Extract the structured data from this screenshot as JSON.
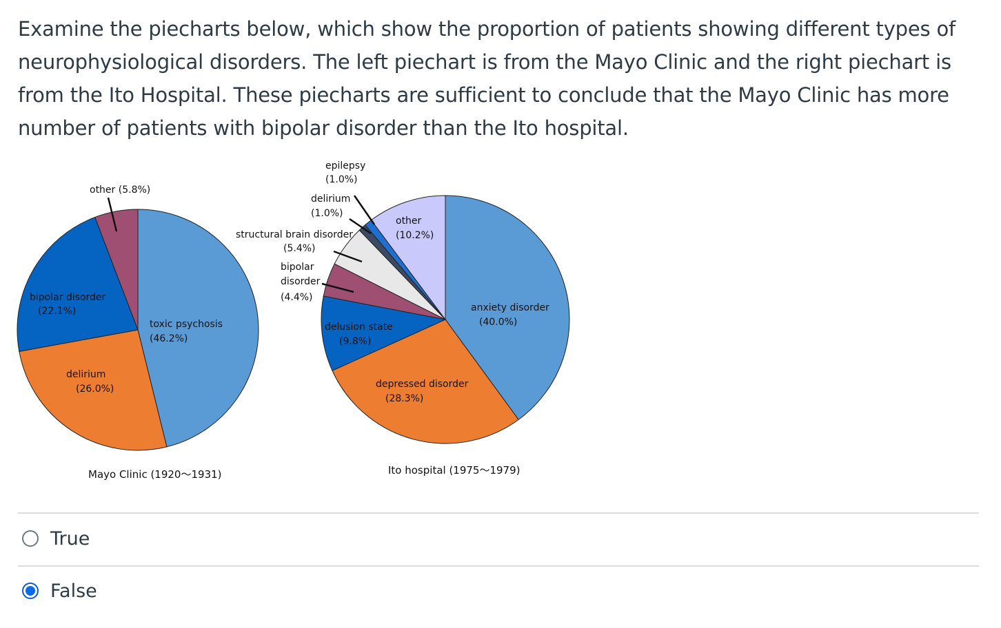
{
  "question": {
    "text": "Examine the piecharts below, which show the proportion of patients showing different types of neurophysiological disorders. The left piechart is from the Mayo Clinic and the right piechart is from the Ito Hospital. These piecharts are sufficient to conclude that the Mayo Clinic has more number of patients with bipolar disorder than the Ito hospital."
  },
  "chart_data": [
    {
      "type": "pie",
      "title": "Mayo Clinic (1920〜1931)",
      "slices": [
        {
          "label": "toxic psychosis",
          "value": 46.2,
          "value_label": "(46.2%)",
          "color": "#5b9bd5"
        },
        {
          "label": "delirium",
          "value": 26.0,
          "value_label": "(26.0%)",
          "color": "#ed7d31"
        },
        {
          "label": "bipolar disorder",
          "value": 22.1,
          "value_label": "(22.1%)",
          "color": "#0563c1"
        },
        {
          "label": "other",
          "value": 5.8,
          "value_label": "(5.8%)",
          "color": "#9e4f72"
        }
      ]
    },
    {
      "type": "pie",
      "title": "Ito hospital (1975〜1979)",
      "slices": [
        {
          "label": "anxiety disorder",
          "value": 40.0,
          "value_label": "(40.0%)",
          "color": "#5b9bd5"
        },
        {
          "label": "depressed disorder",
          "value": 28.3,
          "value_label": "(28.3%)",
          "color": "#ed7d31"
        },
        {
          "label": "delusion state",
          "value": 9.8,
          "value_label": "(9.8%)",
          "color": "#0563c1"
        },
        {
          "label": "bipolar disorder",
          "value": 4.4,
          "value_label": "(4.4%)",
          "color": "#9e4f72"
        },
        {
          "label": "structural brain disorder",
          "value": 5.4,
          "value_label": "(5.4%)",
          "color": "#e8e8e8"
        },
        {
          "label": "delirium",
          "value": 1.0,
          "value_label": "(1.0%)",
          "color": "#3d4a63"
        },
        {
          "label": "epilepsy",
          "value": 1.0,
          "value_label": "(1.0%)",
          "color": "#1f6fd0"
        },
        {
          "label": "other",
          "value": 10.2,
          "value_label": "(10.2%)",
          "color": "#c9c9fb"
        }
      ]
    }
  ],
  "answers": [
    {
      "label": "True",
      "selected": false
    },
    {
      "label": "False",
      "selected": true
    }
  ]
}
